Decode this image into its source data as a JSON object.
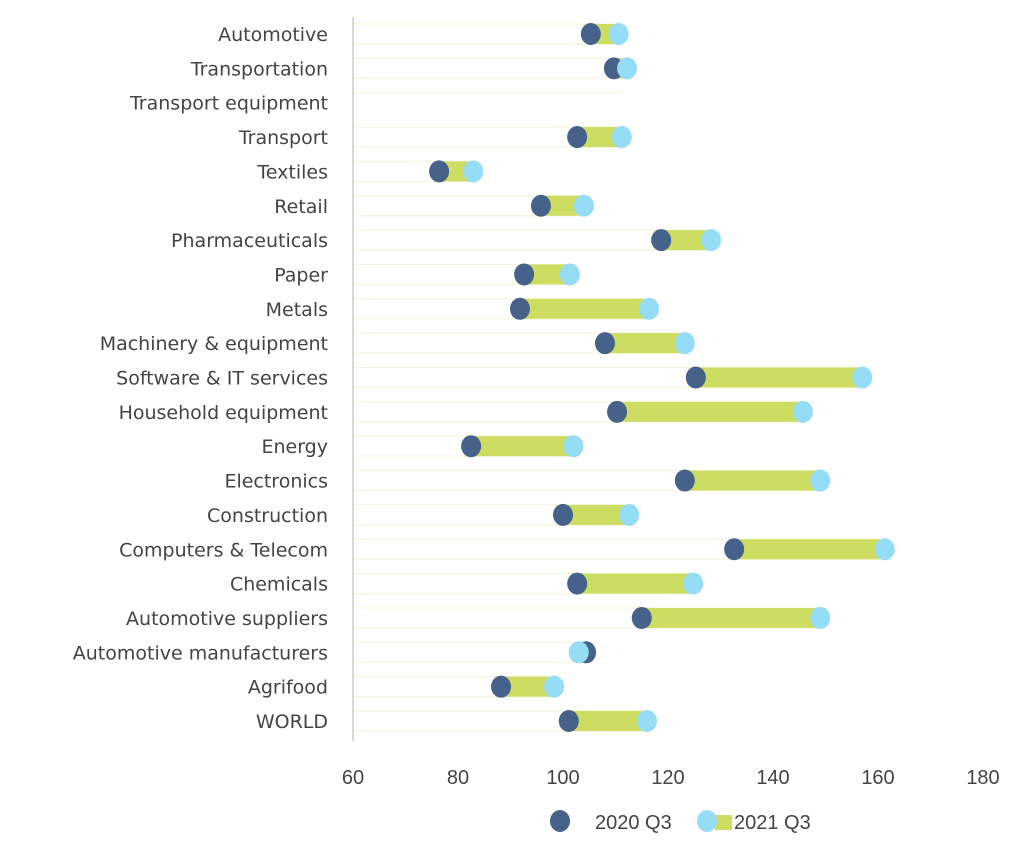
{
  "chart_data": {
    "type": "dumbbell",
    "title": "",
    "xlabel": "",
    "ylabel": "",
    "xlim": [
      60,
      180
    ],
    "xticks": [
      "60",
      "80",
      "100",
      "120",
      "140",
      "160",
      "180"
    ],
    "xtick_values": [
      60,
      80,
      100,
      120,
      140,
      160,
      180
    ],
    "grid": false,
    "legend_position": "bottom",
    "categories": [
      "Automotive",
      "Transportation",
      "Transport equipment",
      "Transport",
      "Textiles",
      "Retail",
      "Pharmaceuticals",
      "Paper",
      "Metals",
      "Machinery & equipment",
      "Software & IT services",
      "Household equipment",
      "Energy",
      "Electronics",
      "Construction",
      "Computers & Telecom",
      "Chemicals",
      "Automotive suppliers",
      "Automotive manufacturers",
      "Agrifood",
      "WORLD"
    ],
    "series": [
      {
        "name": "2020 Q3",
        "color": "#46618a",
        "values": [
          105.3,
          109.7,
          null,
          102.7,
          76.4,
          95.8,
          118.7,
          92.6,
          91.8,
          108.0,
          125.3,
          110.3,
          82.5,
          123.2,
          100.0,
          132.6,
          102.7,
          115.0,
          104.4,
          88.2,
          101.1
        ]
      },
      {
        "name": "2021 Q3",
        "color": "#95dcf7",
        "bar_color": "#cddd62",
        "values": [
          110.6,
          112.2,
          null,
          111.2,
          82.9,
          104.0,
          128.2,
          101.3,
          116.4,
          123.2,
          157.0,
          145.7,
          102.0,
          149.0,
          112.6,
          161.3,
          124.8,
          149.0,
          103.0,
          98.3,
          116.0
        ]
      }
    ]
  }
}
